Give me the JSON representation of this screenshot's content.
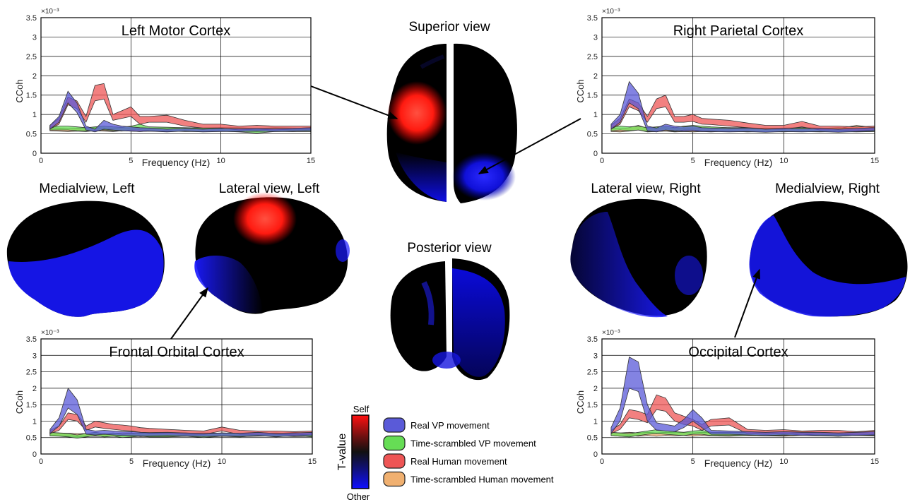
{
  "figure": {
    "colors": {
      "real_vp": "#5a5ad8",
      "scr_vp": "#66dd55",
      "real_human": "#ee5555",
      "scr_human": "#f0b070",
      "self": "#ff2020",
      "other": "#1a1aff",
      "neutral": "#000000"
    },
    "brain_views": [
      {
        "key": "superior",
        "label": "Superior view"
      },
      {
        "key": "posterior",
        "label": "Posterior view"
      },
      {
        "key": "medial_left",
        "label": "Medialview, Left"
      },
      {
        "key": "lateral_left",
        "label": "Lateral view, Left"
      },
      {
        "key": "lateral_right",
        "label": "Lateral view, Right"
      },
      {
        "key": "medial_right",
        "label": "Medialview, Right"
      }
    ],
    "colorbar": {
      "top_label": "Self",
      "bottom_label": "Other",
      "axis_label": "T-value"
    },
    "legend": [
      {
        "label": "Real VP movement",
        "color": "#5a5ad8"
      },
      {
        "label": "Time-scrambled VP movement",
        "color": "#66dd55"
      },
      {
        "label": "Real Human movement",
        "color": "#ee5555"
      },
      {
        "label": "Time-scrambled Human movement",
        "color": "#f0b070"
      }
    ]
  },
  "chart_data": [
    {
      "type": "area",
      "title": "Left Motor Cortex",
      "xlabel": "Frequency (Hz)",
      "ylabel": "CCoh",
      "exponent": "×10⁻³",
      "xlim": [
        0,
        15
      ],
      "ylim": [
        0,
        3.5
      ],
      "xticks": [
        0,
        5,
        10,
        15
      ],
      "yticks": [
        0,
        0.5,
        1,
        1.5,
        2,
        2.5,
        3,
        3.5
      ],
      "grid": true,
      "x": [
        0.5,
        1,
        1.5,
        2,
        2.5,
        3,
        3.5,
        4,
        4.5,
        5,
        5.5,
        6,
        7,
        8,
        9,
        10,
        11,
        12,
        13,
        14,
        15
      ],
      "series": [
        {
          "name": "Real VP movement",
          "upper": [
            0.72,
            0.95,
            1.6,
            1.3,
            0.7,
            0.62,
            0.85,
            0.75,
            0.7,
            0.68,
            0.66,
            0.65,
            0.62,
            0.64,
            0.62,
            0.64,
            0.63,
            0.64,
            0.63,
            0.64,
            0.66
          ],
          "lower": [
            0.62,
            0.8,
            1.3,
            1.05,
            0.6,
            0.55,
            0.62,
            0.6,
            0.58,
            0.57,
            0.56,
            0.57,
            0.55,
            0.57,
            0.55,
            0.56,
            0.56,
            0.57,
            0.56,
            0.57,
            0.58
          ]
        },
        {
          "name": "Time-scrambled VP movement",
          "upper": [
            0.68,
            0.7,
            0.7,
            0.68,
            0.66,
            0.68,
            0.7,
            0.68,
            0.67,
            0.7,
            0.75,
            0.68,
            0.67,
            0.66,
            0.65,
            0.66,
            0.66,
            0.64,
            0.66,
            0.65,
            0.64
          ],
          "lower": [
            0.6,
            0.6,
            0.6,
            0.58,
            0.57,
            0.59,
            0.6,
            0.58,
            0.57,
            0.6,
            0.6,
            0.58,
            0.57,
            0.56,
            0.56,
            0.57,
            0.55,
            0.52,
            0.56,
            0.56,
            0.56
          ]
        },
        {
          "name": "Real Human movement",
          "upper": [
            0.72,
            0.9,
            1.45,
            1.35,
            0.95,
            1.75,
            1.8,
            1.0,
            1.1,
            1.2,
            0.95,
            0.95,
            0.98,
            0.85,
            0.75,
            0.75,
            0.7,
            0.72,
            0.7,
            0.7,
            0.7
          ],
          "lower": [
            0.62,
            0.75,
            1.25,
            1.15,
            0.8,
            1.35,
            1.4,
            0.85,
            0.9,
            0.95,
            0.75,
            0.8,
            0.8,
            0.7,
            0.65,
            0.65,
            0.6,
            0.62,
            0.6,
            0.62,
            0.62
          ]
        },
        {
          "name": "Time-scrambled Human movement",
          "upper": [
            0.66,
            0.65,
            0.63,
            0.65,
            0.64,
            0.66,
            0.65,
            0.64,
            0.66,
            0.65,
            0.64,
            0.65,
            0.64,
            0.65,
            0.64,
            0.66,
            0.65,
            0.64,
            0.65,
            0.64,
            0.66
          ],
          "lower": [
            0.58,
            0.57,
            0.56,
            0.57,
            0.56,
            0.58,
            0.57,
            0.56,
            0.58,
            0.57,
            0.56,
            0.57,
            0.56,
            0.57,
            0.56,
            0.58,
            0.57,
            0.56,
            0.57,
            0.56,
            0.58
          ]
        }
      ]
    },
    {
      "type": "area",
      "title": "Right Parietal Cortex",
      "xlabel": "Frequency (Hz)",
      "ylabel": "CCoh",
      "exponent": "×10⁻³",
      "xlim": [
        0,
        15
      ],
      "ylim": [
        0,
        3.5
      ],
      "xticks": [
        0,
        5,
        10,
        15
      ],
      "yticks": [
        0,
        0.5,
        1,
        1.5,
        2,
        2.5,
        3,
        3.5
      ],
      "grid": true,
      "x": [
        0.5,
        1,
        1.5,
        2,
        2.5,
        3,
        3.5,
        4,
        4.5,
        5,
        5.5,
        6,
        7,
        8,
        9,
        10,
        11,
        12,
        13,
        14,
        15
      ],
      "series": [
        {
          "name": "Real VP movement",
          "upper": [
            0.75,
            1.0,
            1.85,
            1.55,
            0.7,
            0.65,
            0.75,
            0.7,
            0.68,
            0.7,
            0.66,
            0.65,
            0.64,
            0.65,
            0.62,
            0.64,
            0.63,
            0.64,
            0.62,
            0.64,
            0.66
          ],
          "lower": [
            0.62,
            0.8,
            1.3,
            1.15,
            0.58,
            0.55,
            0.6,
            0.58,
            0.57,
            0.58,
            0.56,
            0.56,
            0.55,
            0.56,
            0.54,
            0.56,
            0.55,
            0.56,
            0.54,
            0.56,
            0.58
          ]
        },
        {
          "name": "Time-scrambled VP movement",
          "upper": [
            0.68,
            0.7,
            0.68,
            0.7,
            0.66,
            0.68,
            0.7,
            0.66,
            0.7,
            0.72,
            0.7,
            0.68,
            0.66,
            0.66,
            0.64,
            0.65,
            0.66,
            0.64,
            0.66,
            0.64,
            0.66
          ],
          "lower": [
            0.58,
            0.6,
            0.58,
            0.6,
            0.56,
            0.58,
            0.6,
            0.56,
            0.6,
            0.6,
            0.58,
            0.57,
            0.56,
            0.56,
            0.55,
            0.56,
            0.56,
            0.55,
            0.56,
            0.55,
            0.56
          ]
        },
        {
          "name": "Real Human movement",
          "upper": [
            0.72,
            0.9,
            1.4,
            1.3,
            0.95,
            1.4,
            1.5,
            0.95,
            0.95,
            1.0,
            0.9,
            0.88,
            0.85,
            0.78,
            0.72,
            0.72,
            0.82,
            0.7,
            0.7,
            0.68,
            0.7
          ],
          "lower": [
            0.62,
            0.75,
            1.2,
            1.1,
            0.8,
            1.15,
            1.2,
            0.8,
            0.8,
            0.82,
            0.75,
            0.74,
            0.7,
            0.66,
            0.62,
            0.62,
            0.68,
            0.6,
            0.6,
            0.58,
            0.6
          ]
        },
        {
          "name": "Time-scrambled Human movement",
          "upper": [
            0.65,
            0.63,
            0.66,
            0.72,
            0.64,
            0.65,
            0.66,
            0.64,
            0.65,
            0.64,
            0.65,
            0.64,
            0.66,
            0.64,
            0.65,
            0.64,
            0.66,
            0.65,
            0.64,
            0.72,
            0.66
          ],
          "lower": [
            0.56,
            0.55,
            0.57,
            0.6,
            0.55,
            0.56,
            0.57,
            0.55,
            0.56,
            0.55,
            0.56,
            0.55,
            0.57,
            0.55,
            0.56,
            0.55,
            0.57,
            0.56,
            0.55,
            0.6,
            0.57
          ]
        }
      ]
    },
    {
      "type": "area",
      "title": "Frontal Orbital Cortex",
      "xlabel": "Frequency (Hz)",
      "ylabel": "CCoh",
      "exponent": "×10⁻³",
      "xlim": [
        0,
        15
      ],
      "ylim": [
        0,
        3.5
      ],
      "xticks": [
        0,
        5,
        10,
        15
      ],
      "yticks": [
        0,
        0.5,
        1,
        1.5,
        2,
        2.5,
        3,
        3.5
      ],
      "grid": true,
      "x": [
        0.5,
        1,
        1.5,
        2,
        2.5,
        3,
        3.5,
        4,
        4.5,
        5,
        5.5,
        6,
        7,
        8,
        9,
        10,
        11,
        12,
        13,
        14,
        15
      ],
      "series": [
        {
          "name": "Real VP movement",
          "upper": [
            0.75,
            1.1,
            2.0,
            1.65,
            0.75,
            0.7,
            0.72,
            0.7,
            0.68,
            0.68,
            0.66,
            0.65,
            0.66,
            0.64,
            0.62,
            0.64,
            0.63,
            0.66,
            0.62,
            0.64,
            0.66
          ],
          "lower": [
            0.62,
            0.85,
            1.4,
            1.2,
            0.6,
            0.58,
            0.6,
            0.58,
            0.56,
            0.56,
            0.55,
            0.55,
            0.56,
            0.55,
            0.53,
            0.55,
            0.54,
            0.56,
            0.53,
            0.55,
            0.56
          ]
        },
        {
          "name": "Time-scrambled VP movement",
          "upper": [
            0.66,
            0.64,
            0.62,
            0.58,
            0.62,
            0.66,
            0.62,
            0.64,
            0.6,
            0.62,
            0.64,
            0.62,
            0.62,
            0.64,
            0.6,
            0.64,
            0.62,
            0.66,
            0.62,
            0.66,
            0.62
          ],
          "lower": [
            0.55,
            0.54,
            0.52,
            0.48,
            0.52,
            0.56,
            0.52,
            0.54,
            0.5,
            0.52,
            0.54,
            0.52,
            0.52,
            0.54,
            0.5,
            0.54,
            0.52,
            0.56,
            0.52,
            0.56,
            0.52
          ]
        },
        {
          "name": "Real Human movement",
          "upper": [
            0.72,
            0.85,
            1.25,
            1.2,
            0.85,
            1.0,
            0.95,
            0.9,
            0.88,
            0.85,
            0.8,
            0.78,
            0.75,
            0.72,
            0.7,
            0.82,
            0.72,
            0.7,
            0.7,
            0.68,
            0.7
          ],
          "lower": [
            0.62,
            0.72,
            1.05,
            1.0,
            0.72,
            0.82,
            0.78,
            0.75,
            0.72,
            0.7,
            0.66,
            0.64,
            0.62,
            0.6,
            0.6,
            0.7,
            0.6,
            0.6,
            0.6,
            0.58,
            0.6
          ]
        },
        {
          "name": "Time-scrambled Human movement",
          "upper": [
            0.66,
            0.64,
            0.63,
            0.62,
            0.62,
            0.63,
            0.62,
            0.63,
            0.64,
            0.64,
            0.62,
            0.63,
            0.62,
            0.63,
            0.64,
            0.63,
            0.62,
            0.63,
            0.64,
            0.62,
            0.63
          ],
          "lower": [
            0.56,
            0.55,
            0.54,
            0.53,
            0.53,
            0.54,
            0.53,
            0.54,
            0.55,
            0.55,
            0.53,
            0.54,
            0.53,
            0.54,
            0.55,
            0.54,
            0.53,
            0.54,
            0.55,
            0.53,
            0.54
          ]
        }
      ]
    },
    {
      "type": "area",
      "title": "Occipital Cortex",
      "xlabel": "Frequency (Hz)",
      "ylabel": "CCoh",
      "exponent": "×10⁻³",
      "xlim": [
        0,
        15
      ],
      "ylim": [
        0,
        3.5
      ],
      "xticks": [
        0,
        5,
        10,
        15
      ],
      "yticks": [
        0,
        0.5,
        1,
        1.5,
        2,
        2.5,
        3,
        3.5
      ],
      "grid": true,
      "x": [
        0.5,
        1,
        1.5,
        2,
        2.5,
        3,
        3.5,
        4,
        4.5,
        5,
        5.5,
        6,
        7,
        8,
        9,
        10,
        11,
        12,
        13,
        14,
        15
      ],
      "series": [
        {
          "name": "Real VP movement",
          "upper": [
            0.8,
            1.4,
            2.95,
            2.8,
            1.5,
            0.95,
            0.9,
            0.85,
            1.05,
            1.35,
            1.1,
            0.72,
            0.7,
            0.68,
            0.66,
            0.68,
            0.66,
            0.66,
            0.64,
            0.66,
            0.68
          ],
          "lower": [
            0.62,
            1.0,
            2.0,
            1.9,
            1.0,
            0.72,
            0.7,
            0.68,
            0.8,
            1.0,
            0.8,
            0.6,
            0.6,
            0.58,
            0.56,
            0.58,
            0.56,
            0.56,
            0.55,
            0.56,
            0.58
          ]
        },
        {
          "name": "Time-scrambled VP movement",
          "upper": [
            0.66,
            0.64,
            0.62,
            0.66,
            0.7,
            0.74,
            0.7,
            0.68,
            0.66,
            0.7,
            0.72,
            0.66,
            0.66,
            0.66,
            0.65,
            0.66,
            0.7,
            0.66,
            0.64,
            0.66,
            0.66
          ],
          "lower": [
            0.56,
            0.54,
            0.52,
            0.56,
            0.6,
            0.62,
            0.6,
            0.58,
            0.56,
            0.6,
            0.6,
            0.56,
            0.56,
            0.56,
            0.55,
            0.56,
            0.6,
            0.56,
            0.54,
            0.56,
            0.56
          ]
        },
        {
          "name": "Real Human movement",
          "upper": [
            0.72,
            0.9,
            1.35,
            1.3,
            1.2,
            1.8,
            1.7,
            1.25,
            1.15,
            1.05,
            0.9,
            1.05,
            1.1,
            0.75,
            0.72,
            0.74,
            0.7,
            0.72,
            0.72,
            0.68,
            0.72
          ],
          "lower": [
            0.62,
            0.75,
            1.1,
            1.05,
            0.95,
            1.35,
            1.3,
            1.0,
            0.9,
            0.85,
            0.72,
            0.85,
            0.88,
            0.62,
            0.6,
            0.62,
            0.6,
            0.6,
            0.6,
            0.58,
            0.6
          ]
        },
        {
          "name": "Time-scrambled Human movement",
          "upper": [
            0.66,
            0.64,
            0.66,
            0.64,
            0.66,
            0.64,
            0.66,
            0.65,
            0.66,
            0.64,
            0.66,
            0.65,
            0.64,
            0.66,
            0.65,
            0.64,
            0.66,
            0.65,
            0.64,
            0.66,
            0.65
          ],
          "lower": [
            0.56,
            0.54,
            0.56,
            0.54,
            0.56,
            0.54,
            0.56,
            0.55,
            0.56,
            0.54,
            0.56,
            0.55,
            0.54,
            0.56,
            0.55,
            0.54,
            0.56,
            0.55,
            0.54,
            0.56,
            0.55
          ]
        }
      ]
    }
  ]
}
